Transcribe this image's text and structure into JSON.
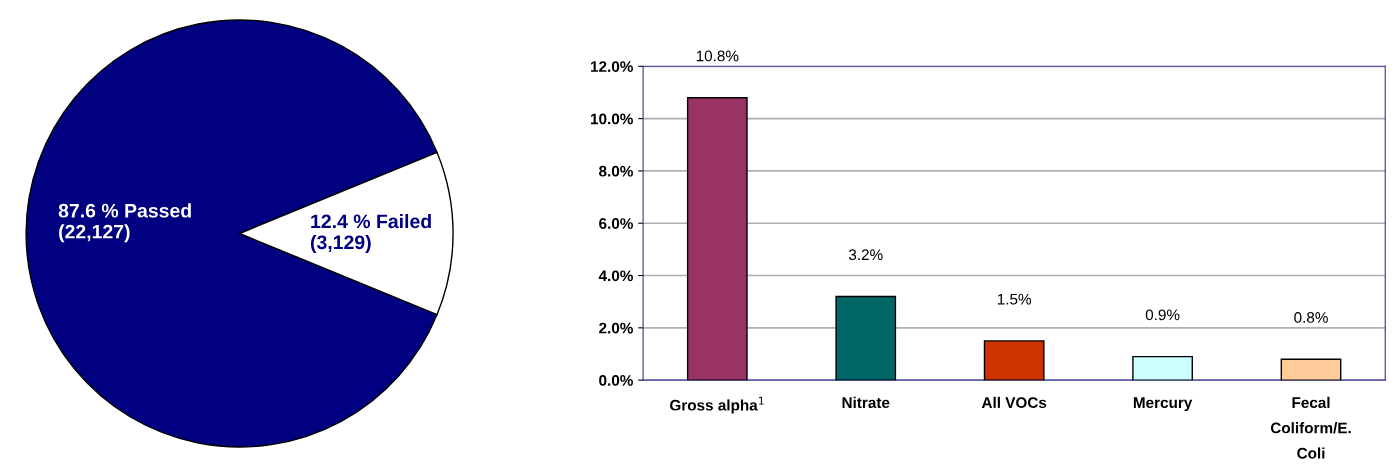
{
  "chart_data": [
    {
      "type": "pie",
      "categories": [
        null,
        null
      ],
      "values": [
        87.6,
        12.4
      ],
      "colors": [
        "#000080",
        "#ffffff"
      ],
      "value_labels": [
        "87.6 % Passed\n(22,127)",
        "12.4 % Failed\n(3,129)"
      ]
    },
    {
      "type": "bar",
      "categories": [
        "Gross alpha$^{1}$",
        "Nitrate",
        "All VOCs",
        "Mercury",
        "Fecal Coliform/E. Coli"
      ],
      "values": [
        10.8,
        3.2,
        1.5,
        0.9,
        0.8
      ],
      "colors": [
        "#993366",
        "#006666",
        "#cc3300",
        "#ccffff",
        "#ffcc99"
      ],
      "value_labels": [
        "10.8%",
        "3.2%",
        "1.5%",
        "0.9%",
        "0.8%"
      ],
      "ylim": [
        0,
        12
      ],
      "yticks": [
        {
          "value": 0,
          "label": "0.0%"
        },
        {
          "value": 2,
          "label": "2.0%"
        },
        {
          "value": 4,
          "label": "4.0%"
        },
        {
          "value": 6,
          "label": "6.0%"
        },
        {
          "value": 8,
          "label": "8.0%"
        },
        {
          "value": 10,
          "label": "10.0%"
        },
        {
          "value": 12,
          "label": "12.0%"
        }
      ],
      "grid": "y",
      "legend": false
    }
  ]
}
